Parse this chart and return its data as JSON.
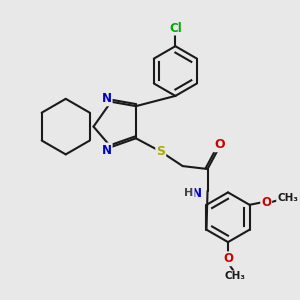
{
  "bg_color": "#e8e8e8",
  "bond_color": "#1a1a1a",
  "bond_width": 1.5,
  "atom_colors": {
    "N": "#0000cc",
    "S": "#aaaa00",
    "O": "#cc0000",
    "Cl": "#00aa00",
    "C": "#1a1a1a",
    "H": "#444444"
  },
  "font_size": 8.5
}
